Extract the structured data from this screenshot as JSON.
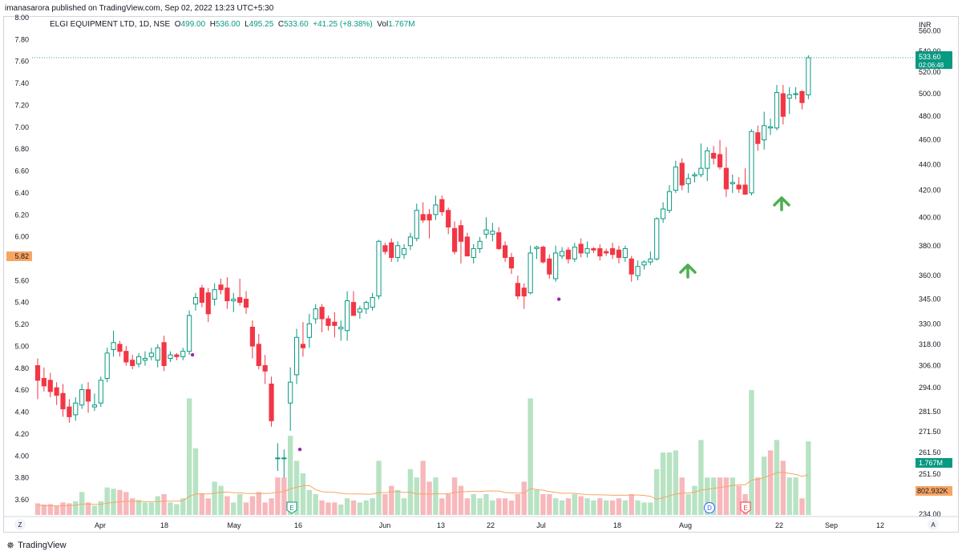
{
  "header": {
    "publisher": "imanasarora published on TradingView.com, Sep 02, 2022 13:23 UTC+5:30"
  },
  "legend": {
    "symbol": "ELGI EQUIPMENT LTD, 1D, NSE",
    "open_label": "O",
    "open": "499.00",
    "high_label": "H",
    "high": "536.00",
    "low_label": "L",
    "low": "495.25",
    "close_label": "C",
    "close": "533.60",
    "change": "+41.25 (+8.38%)",
    "vol_label": "Vol",
    "vol": "1.767M"
  },
  "footer": {
    "brand": "TradingView"
  },
  "colors": {
    "up": "#089981",
    "down": "#f23645",
    "up_vol": "#b7e3c3",
    "down_vol": "#f7b8bb",
    "ma": "#f7a563",
    "accent": "#2962ff",
    "arrow": "#4caf50",
    "dark_up": "#1f9e78"
  },
  "chart_data": {
    "type": "candlestick",
    "symbol": "ELGI EQUIPMENT LTD",
    "interval": "1D",
    "exchange": "NSE",
    "currency": "INR",
    "right_axis": {
      "ticks": [
        "560.00",
        "540.00",
        "520.00",
        "500.00",
        "480.00",
        "460.00",
        "440.00",
        "420.00",
        "400.00",
        "380.00",
        "360.00",
        "345.00",
        "330.00",
        "318.00",
        "306.00",
        "294.00",
        "281.50",
        "271.50",
        "261.50",
        "251.50",
        "234.00"
      ]
    },
    "left_axis": {
      "ticks": [
        "8.00",
        "7.80",
        "7.60",
        "7.40",
        "7.20",
        "7.00",
        "6.80",
        "6.60",
        "6.40",
        "6.20",
        "6.00",
        "5.80",
        "5.60",
        "5.40",
        "5.20",
        "5.00",
        "4.80",
        "4.60",
        "4.40",
        "4.20",
        "4.00",
        "3.80",
        "3.60"
      ],
      "marker": "5.82"
    },
    "scale": "log",
    "ylim": [
      234,
      572
    ],
    "x_ticks": [
      "Apr",
      "18",
      "May",
      "16",
      "Jun",
      "13",
      "22",
      "Jul",
      "18",
      "Aug",
      "22",
      "Sep",
      "12"
    ],
    "price_label": {
      "value": "533.60",
      "countdown": "02:06:48"
    },
    "volume_labels": {
      "last": "1.767M",
      "ma": "802.932K"
    },
    "annotations": [
      "up-arrow Aug 1",
      "up-arrow Aug 23"
    ],
    "event_markers": [
      "E",
      "D",
      "E"
    ],
    "corner_buttons": {
      "left": "Z",
      "right": "A"
    },
    "candles": [
      {
        "o": 306,
        "h": 310,
        "l": 288,
        "c": 298
      },
      {
        "o": 299,
        "h": 305,
        "l": 292,
        "c": 295
      },
      {
        "o": 298,
        "h": 302,
        "l": 289,
        "c": 292
      },
      {
        "o": 294,
        "h": 297,
        "l": 285,
        "c": 290
      },
      {
        "o": 291,
        "h": 296,
        "l": 279,
        "c": 283
      },
      {
        "o": 284,
        "h": 288,
        "l": 276,
        "c": 279
      },
      {
        "o": 280,
        "h": 289,
        "l": 277,
        "c": 286
      },
      {
        "o": 285,
        "h": 296,
        "l": 283,
        "c": 293
      },
      {
        "o": 293,
        "h": 297,
        "l": 281,
        "c": 287
      },
      {
        "o": 284,
        "h": 291,
        "l": 282,
        "c": 285
      },
      {
        "o": 286,
        "h": 300,
        "l": 284,
        "c": 298
      },
      {
        "o": 299,
        "h": 316,
        "l": 297,
        "c": 313
      },
      {
        "o": 315,
        "h": 326,
        "l": 311,
        "c": 319
      },
      {
        "o": 318,
        "h": 320,
        "l": 311,
        "c": 314
      },
      {
        "o": 314,
        "h": 317,
        "l": 306,
        "c": 308
      },
      {
        "o": 309,
        "h": 312,
        "l": 304,
        "c": 306
      },
      {
        "o": 307,
        "h": 313,
        "l": 305,
        "c": 311
      },
      {
        "o": 309,
        "h": 314,
        "l": 306,
        "c": 310
      },
      {
        "o": 311,
        "h": 316,
        "l": 309,
        "c": 313
      },
      {
        "o": 309,
        "h": 318,
        "l": 305,
        "c": 316
      },
      {
        "o": 319,
        "h": 323,
        "l": 303,
        "c": 306
      },
      {
        "o": 310,
        "h": 314,
        "l": 308,
        "c": 312
      },
      {
        "o": 312,
        "h": 313,
        "l": 309,
        "c": 311
      },
      {
        "o": 311,
        "h": 316,
        "l": 309,
        "c": 314
      },
      {
        "o": 314,
        "h": 338,
        "l": 312,
        "c": 335
      },
      {
        "o": 342,
        "h": 349,
        "l": 338,
        "c": 346
      },
      {
        "o": 352,
        "h": 354,
        "l": 340,
        "c": 343
      },
      {
        "o": 349,
        "h": 352,
        "l": 331,
        "c": 336
      },
      {
        "o": 345,
        "h": 355,
        "l": 341,
        "c": 351
      },
      {
        "o": 354,
        "h": 358,
        "l": 348,
        "c": 351
      },
      {
        "o": 352,
        "h": 359,
        "l": 339,
        "c": 344
      },
      {
        "o": 344,
        "h": 349,
        "l": 337,
        "c": 345
      },
      {
        "o": 346,
        "h": 358,
        "l": 341,
        "c": 343
      },
      {
        "o": 345,
        "h": 350,
        "l": 336,
        "c": 340
      },
      {
        "o": 328,
        "h": 332,
        "l": 310,
        "c": 317
      },
      {
        "o": 318,
        "h": 324,
        "l": 304,
        "c": 306
      },
      {
        "o": 306,
        "h": 312,
        "l": 296,
        "c": 303
      },
      {
        "o": 296,
        "h": 300,
        "l": 274,
        "c": 277
      },
      {
        "o": 259,
        "h": 266,
        "l": 253,
        "c": 259
      },
      {
        "o": 259,
        "h": 263,
        "l": 250,
        "c": 259
      },
      {
        "o": 286,
        "h": 305,
        "l": 272,
        "c": 297
      },
      {
        "o": 301,
        "h": 327,
        "l": 296,
        "c": 322
      },
      {
        "o": 318,
        "h": 331,
        "l": 311,
        "c": 316
      },
      {
        "o": 322,
        "h": 336,
        "l": 316,
        "c": 330
      },
      {
        "o": 333,
        "h": 342,
        "l": 330,
        "c": 339
      },
      {
        "o": 340,
        "h": 342,
        "l": 325,
        "c": 333
      },
      {
        "o": 333,
        "h": 335,
        "l": 326,
        "c": 329
      },
      {
        "o": 331,
        "h": 337,
        "l": 322,
        "c": 329
      },
      {
        "o": 327,
        "h": 332,
        "l": 320,
        "c": 328
      },
      {
        "o": 326,
        "h": 350,
        "l": 320,
        "c": 344
      },
      {
        "o": 343,
        "h": 350,
        "l": 336,
        "c": 335
      },
      {
        "o": 337,
        "h": 341,
        "l": 333,
        "c": 339
      },
      {
        "o": 339,
        "h": 344,
        "l": 336,
        "c": 343
      },
      {
        "o": 340,
        "h": 349,
        "l": 338,
        "c": 346
      },
      {
        "o": 347,
        "h": 384,
        "l": 345,
        "c": 383
      },
      {
        "o": 380,
        "h": 382,
        "l": 374,
        "c": 376
      },
      {
        "o": 382,
        "h": 385,
        "l": 369,
        "c": 372
      },
      {
        "o": 372,
        "h": 383,
        "l": 369,
        "c": 380
      },
      {
        "o": 374,
        "h": 381,
        "l": 371,
        "c": 378
      },
      {
        "o": 380,
        "h": 389,
        "l": 377,
        "c": 386
      },
      {
        "o": 385,
        "h": 410,
        "l": 383,
        "c": 405
      },
      {
        "o": 402,
        "h": 411,
        "l": 396,
        "c": 398
      },
      {
        "o": 402,
        "h": 406,
        "l": 385,
        "c": 398
      },
      {
        "o": 402,
        "h": 416,
        "l": 398,
        "c": 409
      },
      {
        "o": 413,
        "h": 416,
        "l": 401,
        "c": 404
      },
      {
        "o": 405,
        "h": 407,
        "l": 388,
        "c": 393
      },
      {
        "o": 392,
        "h": 397,
        "l": 374,
        "c": 376
      },
      {
        "o": 394,
        "h": 398,
        "l": 368,
        "c": 383
      },
      {
        "o": 386,
        "h": 389,
        "l": 374,
        "c": 373
      },
      {
        "o": 372,
        "h": 381,
        "l": 368,
        "c": 378
      },
      {
        "o": 378,
        "h": 386,
        "l": 375,
        "c": 383
      },
      {
        "o": 388,
        "h": 400,
        "l": 385,
        "c": 391
      },
      {
        "o": 388,
        "h": 396,
        "l": 383,
        "c": 390
      },
      {
        "o": 389,
        "h": 393,
        "l": 377,
        "c": 378
      },
      {
        "o": 380,
        "h": 383,
        "l": 369,
        "c": 372
      },
      {
        "o": 372,
        "h": 375,
        "l": 361,
        "c": 365
      },
      {
        "o": 355,
        "h": 360,
        "l": 345,
        "c": 347
      },
      {
        "o": 352,
        "h": 355,
        "l": 339,
        "c": 347
      },
      {
        "o": 349,
        "h": 380,
        "l": 348,
        "c": 375
      },
      {
        "o": 378,
        "h": 380,
        "l": 371,
        "c": 379
      },
      {
        "o": 379,
        "h": 380,
        "l": 368,
        "c": 369
      },
      {
        "o": 371,
        "h": 374,
        "l": 358,
        "c": 361
      },
      {
        "o": 358,
        "h": 380,
        "l": 356,
        "c": 375
      },
      {
        "o": 373,
        "h": 379,
        "l": 371,
        "c": 376
      },
      {
        "o": 377,
        "h": 379,
        "l": 368,
        "c": 371
      },
      {
        "o": 371,
        "h": 382,
        "l": 369,
        "c": 379
      },
      {
        "o": 381,
        "h": 385,
        "l": 372,
        "c": 375
      },
      {
        "o": 375,
        "h": 383,
        "l": 372,
        "c": 378
      },
      {
        "o": 378,
        "h": 379,
        "l": 375,
        "c": 377
      },
      {
        "o": 378,
        "h": 381,
        "l": 370,
        "c": 373
      },
      {
        "o": 376,
        "h": 378,
        "l": 373,
        "c": 375
      },
      {
        "o": 378,
        "h": 382,
        "l": 371,
        "c": 374
      },
      {
        "o": 377,
        "h": 380,
        "l": 368,
        "c": 372
      },
      {
        "o": 372,
        "h": 380,
        "l": 369,
        "c": 378
      },
      {
        "o": 371,
        "h": 373,
        "l": 356,
        "c": 361
      },
      {
        "o": 360,
        "h": 370,
        "l": 357,
        "c": 366
      },
      {
        "o": 367,
        "h": 370,
        "l": 364,
        "c": 369
      },
      {
        "o": 369,
        "h": 376,
        "l": 367,
        "c": 371
      },
      {
        "o": 371,
        "h": 400,
        "l": 370,
        "c": 399
      },
      {
        "o": 399,
        "h": 411,
        "l": 396,
        "c": 406
      },
      {
        "o": 405,
        "h": 424,
        "l": 403,
        "c": 419
      },
      {
        "o": 420,
        "h": 443,
        "l": 418,
        "c": 438
      },
      {
        "o": 441,
        "h": 445,
        "l": 420,
        "c": 424
      },
      {
        "o": 425,
        "h": 433,
        "l": 418,
        "c": 429
      },
      {
        "o": 431,
        "h": 434,
        "l": 426,
        "c": 432
      },
      {
        "o": 432,
        "h": 457,
        "l": 430,
        "c": 437
      },
      {
        "o": 437,
        "h": 454,
        "l": 427,
        "c": 451
      },
      {
        "o": 449,
        "h": 455,
        "l": 440,
        "c": 445
      },
      {
        "o": 448,
        "h": 460,
        "l": 436,
        "c": 438
      },
      {
        "o": 437,
        "h": 454,
        "l": 415,
        "c": 421
      },
      {
        "o": 425,
        "h": 432,
        "l": 418,
        "c": 426
      },
      {
        "o": 424,
        "h": 430,
        "l": 418,
        "c": 421
      },
      {
        "o": 424,
        "h": 437,
        "l": 417,
        "c": 417
      },
      {
        "o": 418,
        "h": 469,
        "l": 416,
        "c": 467
      },
      {
        "o": 466,
        "h": 472,
        "l": 451,
        "c": 457
      },
      {
        "o": 460,
        "h": 484,
        "l": 452,
        "c": 472
      },
      {
        "o": 470,
        "h": 478,
        "l": 464,
        "c": 471
      },
      {
        "o": 470,
        "h": 508,
        "l": 468,
        "c": 501
      },
      {
        "o": 500,
        "h": 508,
        "l": 473,
        "c": 480
      },
      {
        "o": 496,
        "h": 506,
        "l": 482,
        "c": 499
      },
      {
        "o": 500,
        "h": 506,
        "l": 495,
        "c": 500
      },
      {
        "o": 502,
        "h": 503,
        "l": 486,
        "c": 492
      },
      {
        "o": 499,
        "h": 536,
        "l": 495,
        "c": 533.6
      }
    ],
    "volume": [
      {
        "v": 0.28,
        "up": false
      },
      {
        "v": 0.25,
        "up": false
      },
      {
        "v": 0.26,
        "up": false
      },
      {
        "v": 0.22,
        "up": false
      },
      {
        "v": 0.3,
        "up": false
      },
      {
        "v": 0.28,
        "up": false
      },
      {
        "v": 0.33,
        "up": true
      },
      {
        "v": 0.55,
        "up": true
      },
      {
        "v": 0.3,
        "up": false
      },
      {
        "v": 0.22,
        "up": true
      },
      {
        "v": 0.33,
        "up": true
      },
      {
        "v": 0.66,
        "up": true
      },
      {
        "v": 0.63,
        "up": true
      },
      {
        "v": 0.6,
        "up": false
      },
      {
        "v": 0.55,
        "up": false
      },
      {
        "v": 0.4,
        "up": false
      },
      {
        "v": 0.36,
        "up": true
      },
      {
        "v": 0.3,
        "up": true
      },
      {
        "v": 0.3,
        "up": true
      },
      {
        "v": 0.45,
        "up": true
      },
      {
        "v": 0.5,
        "up": false
      },
      {
        "v": 0.3,
        "up": true
      },
      {
        "v": 0.26,
        "up": true
      },
      {
        "v": 0.4,
        "up": true
      },
      {
        "v": 2.8,
        "up": true
      },
      {
        "v": 1.6,
        "up": true
      },
      {
        "v": 0.5,
        "up": false
      },
      {
        "v": 0.4,
        "up": false
      },
      {
        "v": 0.8,
        "up": true
      },
      {
        "v": 0.7,
        "up": true
      },
      {
        "v": 0.45,
        "up": false
      },
      {
        "v": 0.3,
        "up": true
      },
      {
        "v": 0.5,
        "up": true
      },
      {
        "v": 0.3,
        "up": false
      },
      {
        "v": 0.45,
        "up": false
      },
      {
        "v": 0.55,
        "up": false
      },
      {
        "v": 0.3,
        "up": false
      },
      {
        "v": 0.4,
        "up": false
      },
      {
        "v": 0.9,
        "up": false
      },
      {
        "v": 0.9,
        "up": false
      },
      {
        "v": 1.9,
        "up": true
      },
      {
        "v": 1.3,
        "up": true
      },
      {
        "v": 1.0,
        "up": true
      },
      {
        "v": 0.6,
        "up": true
      },
      {
        "v": 0.5,
        "up": true
      },
      {
        "v": 0.35,
        "up": false
      },
      {
        "v": 0.3,
        "up": false
      },
      {
        "v": 0.3,
        "up": false
      },
      {
        "v": 0.25,
        "up": true
      },
      {
        "v": 0.4,
        "up": true
      },
      {
        "v": 0.35,
        "up": false
      },
      {
        "v": 0.3,
        "up": true
      },
      {
        "v": 0.35,
        "up": true
      },
      {
        "v": 0.4,
        "up": true
      },
      {
        "v": 1.3,
        "up": true
      },
      {
        "v": 0.5,
        "up": false
      },
      {
        "v": 0.7,
        "up": false
      },
      {
        "v": 0.6,
        "up": true
      },
      {
        "v": 0.4,
        "up": true
      },
      {
        "v": 1.1,
        "up": true
      },
      {
        "v": 0.9,
        "up": true
      },
      {
        "v": 1.3,
        "up": false
      },
      {
        "v": 0.8,
        "up": false
      },
      {
        "v": 0.9,
        "up": true
      },
      {
        "v": 0.4,
        "up": false
      },
      {
        "v": 0.5,
        "up": false
      },
      {
        "v": 0.9,
        "up": false
      },
      {
        "v": 0.7,
        "up": false
      },
      {
        "v": 0.4,
        "up": false
      },
      {
        "v": 0.5,
        "up": true
      },
      {
        "v": 0.4,
        "up": true
      },
      {
        "v": 0.5,
        "up": true
      },
      {
        "v": 0.35,
        "up": true
      },
      {
        "v": 0.4,
        "up": false
      },
      {
        "v": 0.4,
        "up": false
      },
      {
        "v": 0.35,
        "up": false
      },
      {
        "v": 0.5,
        "up": false
      },
      {
        "v": 0.8,
        "up": false
      },
      {
        "v": 2.8,
        "up": true
      },
      {
        "v": 0.6,
        "up": true
      },
      {
        "v": 0.5,
        "up": false
      },
      {
        "v": 0.5,
        "up": false
      },
      {
        "v": 0.4,
        "up": true
      },
      {
        "v": 0.35,
        "up": true
      },
      {
        "v": 0.4,
        "up": false
      },
      {
        "v": 0.5,
        "up": true
      },
      {
        "v": 0.45,
        "up": false
      },
      {
        "v": 0.4,
        "up": true
      },
      {
        "v": 0.35,
        "up": true
      },
      {
        "v": 0.4,
        "up": false
      },
      {
        "v": 0.35,
        "up": true
      },
      {
        "v": 0.35,
        "up": false
      },
      {
        "v": 0.4,
        "up": false
      },
      {
        "v": 0.35,
        "up": true
      },
      {
        "v": 0.5,
        "up": false
      },
      {
        "v": 0.35,
        "up": true
      },
      {
        "v": 0.3,
        "up": true
      },
      {
        "v": 0.3,
        "up": true
      },
      {
        "v": 1.1,
        "up": true
      },
      {
        "v": 1.5,
        "up": true
      },
      {
        "v": 1.5,
        "up": true
      },
      {
        "v": 1.55,
        "up": true
      },
      {
        "v": 0.9,
        "up": false
      },
      {
        "v": 0.5,
        "up": true
      },
      {
        "v": 0.7,
        "up": true
      },
      {
        "v": 1.8,
        "up": true
      },
      {
        "v": 0.9,
        "up": true
      },
      {
        "v": 0.9,
        "up": true
      },
      {
        "v": 0.9,
        "up": false
      },
      {
        "v": 0.9,
        "up": false
      },
      {
        "v": 0.9,
        "up": true
      },
      {
        "v": 0.7,
        "up": false
      },
      {
        "v": 0.5,
        "up": false
      },
      {
        "v": 3.0,
        "up": true
      },
      {
        "v": 0.9,
        "up": false
      },
      {
        "v": 1.4,
        "up": true
      },
      {
        "v": 1.55,
        "up": false
      },
      {
        "v": 1.8,
        "up": true
      },
      {
        "v": 1.3,
        "up": false
      },
      {
        "v": 0.9,
        "up": true
      },
      {
        "v": 0.9,
        "up": true
      },
      {
        "v": 0.4,
        "up": false
      },
      {
        "v": 1.767,
        "up": true
      }
    ]
  }
}
